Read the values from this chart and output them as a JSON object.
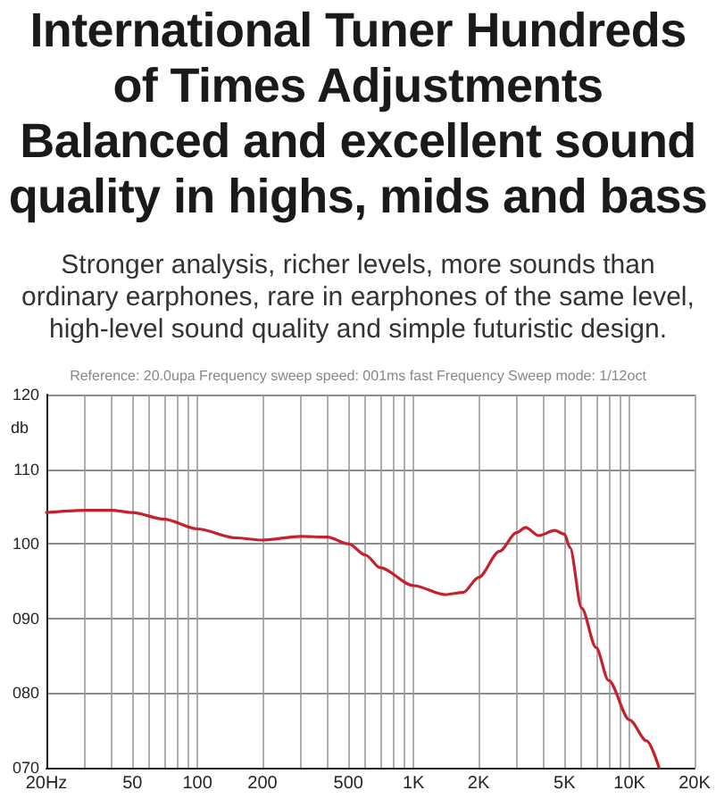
{
  "chart_data": {
    "type": "line",
    "title": "International Tuner  Hundreds\nof Times  Adjustments\nBalanced and excellent sound\nquality in highs, mids and bass",
    "subtitle": "Stronger analysis, richer levels, more sounds than ordinary earphones, rare in earphones of the same level, high-level sound quality and simple futuristic design.",
    "annotations": [
      "Reference: 20.0upa  Frequency sweep speed: 001ms fast  Frequency Sweep mode: 1/12oct"
    ],
    "ylabel": "db",
    "x": [
      20,
      30,
      40,
      50,
      70,
      100,
      150,
      200,
      300,
      400,
      500,
      600,
      700,
      1000,
      1400,
      1700,
      2000,
      2500,
      3000,
      3300,
      3800,
      4500,
      5000,
      5300,
      6000,
      7000,
      8000,
      10000,
      12000,
      13700
    ],
    "series": [
      {
        "color": "#c8202a",
        "values": [
          104.2,
          104.5,
          104.5,
          104.2,
          103.3,
          102.0,
          100.8,
          100.5,
          101.0,
          100.9,
          100.0,
          98.5,
          96.8,
          94.4,
          93.2,
          93.5,
          95.5,
          99.0,
          101.5,
          102.2,
          101.1,
          101.8,
          101.3,
          99.5,
          91.4,
          86.1,
          81.7,
          76.4,
          73.6,
          70.0
        ]
      }
    ],
    "log": "x",
    "xlim": [
      20,
      20000
    ],
    "xticks": [
      {
        "value": 20,
        "label": "20Hz"
      },
      {
        "value": 30,
        "label": null
      },
      {
        "value": 40,
        "label": null
      },
      50,
      {
        "value": 60,
        "label": null
      },
      {
        "value": 70,
        "label": null
      },
      {
        "value": 80,
        "label": null
      },
      {
        "value": 90,
        "label": null
      },
      100,
      200,
      {
        "value": 300,
        "label": null
      },
      {
        "value": 400,
        "label": null
      },
      500,
      {
        "value": 600,
        "label": null
      },
      {
        "value": 700,
        "label": null
      },
      {
        "value": 800,
        "label": null
      },
      {
        "value": 900,
        "label": null
      },
      {
        "value": 1000,
        "label": "1K"
      },
      {
        "value": 2000,
        "label": "2K"
      },
      {
        "value": 3000,
        "label": null
      },
      {
        "value": 4000,
        "label": null
      },
      {
        "value": 5000,
        "label": "5K"
      },
      {
        "value": 6000,
        "label": null
      },
      {
        "value": 7000,
        "label": null
      },
      {
        "value": 8000,
        "label": null
      },
      {
        "value": 9000,
        "label": null
      },
      {
        "value": 10000,
        "label": "10K"
      },
      {
        "value": 20000,
        "label": "20K"
      }
    ],
    "ylim": [
      70,
      120
    ],
    "yticks": [
      {
        "value": 70,
        "label": "070"
      },
      {
        "value": 80,
        "label": "080"
      },
      {
        "value": 90,
        "label": "090"
      },
      100,
      110,
      120
    ],
    "grid": true,
    "marker": "none",
    "line_style": "solid"
  }
}
